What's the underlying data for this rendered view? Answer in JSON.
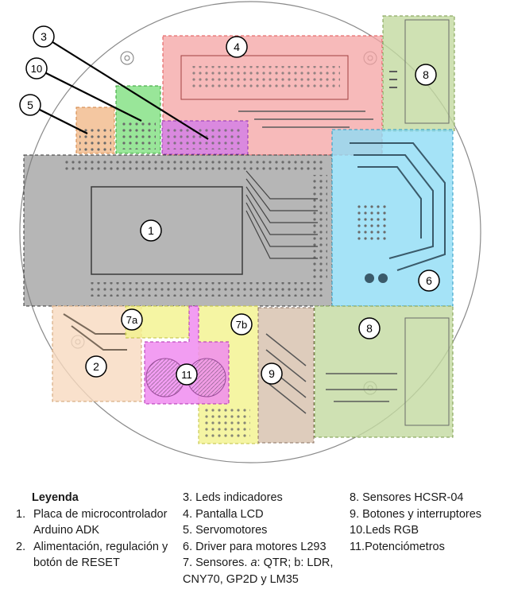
{
  "callouts": [
    "1",
    "2",
    "3",
    "4",
    "5",
    "6",
    "7a",
    "7b",
    "8",
    "8",
    "9",
    "10",
    "11"
  ],
  "zone_colors": {
    "arduino": "#7a7a7a",
    "power": "#f7d9bf",
    "leds": "#d27de8",
    "lcd": "#f4a3a3",
    "servos": "#f1b98a",
    "driver": "#8fdcf5",
    "sensors_a": "#f2f28c",
    "sensors_b": "#f2f28c",
    "hcsr": "#c3d9a0",
    "buttons": "#d8c3b0",
    "rgb": "#7fe07f",
    "pots": "#f08cf0",
    "trace": "#5a5a5a"
  },
  "legend": {
    "title": "Leyenda",
    "col1": [
      {
        "num": "1.",
        "text": "Placa de microcontrolador Arduino ADK"
      },
      {
        "num": "2.",
        "text": "Alimentación, regulación y botón de RESET"
      }
    ],
    "col2": [
      {
        "num": "3.",
        "text": "Leds indicadores"
      },
      {
        "num": "4.",
        "text": "Pantalla LCD"
      },
      {
        "num": "5.",
        "text": "Servomotores"
      },
      {
        "num": "6.",
        "text": "Driver para motores L293"
      },
      {
        "num": "7.",
        "text_pre": "Sensores. ",
        "a": "a",
        "text_mid": ": QTR; b: LDR, CNY70, GP2D y LM35"
      }
    ],
    "col3": [
      {
        "num": "8.",
        "text": "Sensores HCSR-04"
      },
      {
        "num": "9.",
        "text": "Botones y interruptores"
      },
      {
        "num": "10.",
        "text": "Leds RGB"
      },
      {
        "num": "11.",
        "text": "Potenciómetros"
      }
    ]
  }
}
